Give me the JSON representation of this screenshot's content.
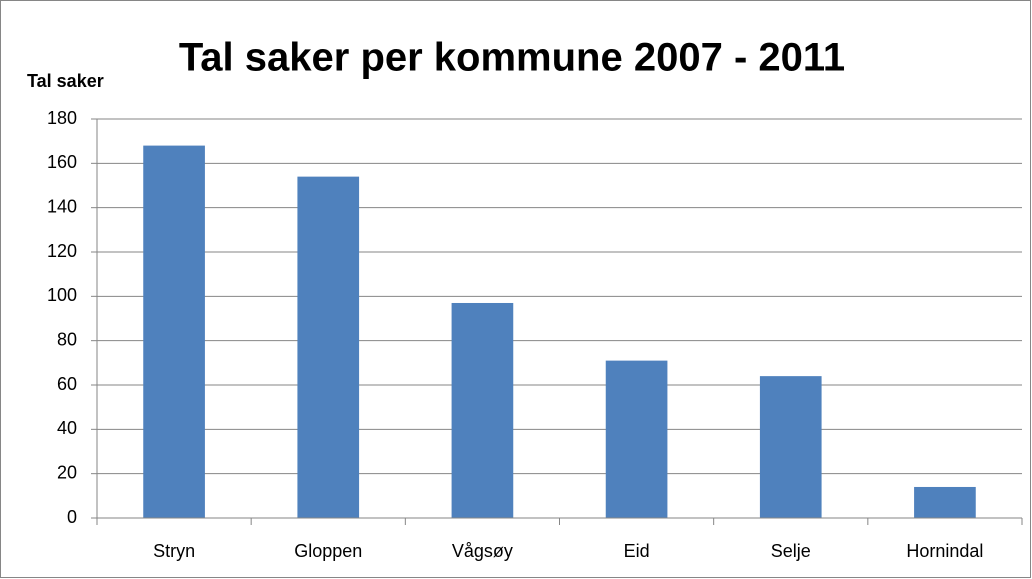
{
  "chart_data": {
    "type": "bar",
    "title": "Tal saker per kommune 2007 - 2011",
    "y_label": "Tal saker",
    "categories": [
      "Stryn",
      "Gloppen",
      "Vågsøy",
      "Eid",
      "Selje",
      "Hornindal"
    ],
    "values": [
      168,
      154,
      97,
      71,
      64,
      14
    ],
    "color": "#4f81bd",
    "ylim": [
      0,
      180
    ],
    "yticks": [
      0,
      20,
      40,
      60,
      80,
      100,
      120,
      140,
      160,
      180
    ],
    "grid": true
  }
}
